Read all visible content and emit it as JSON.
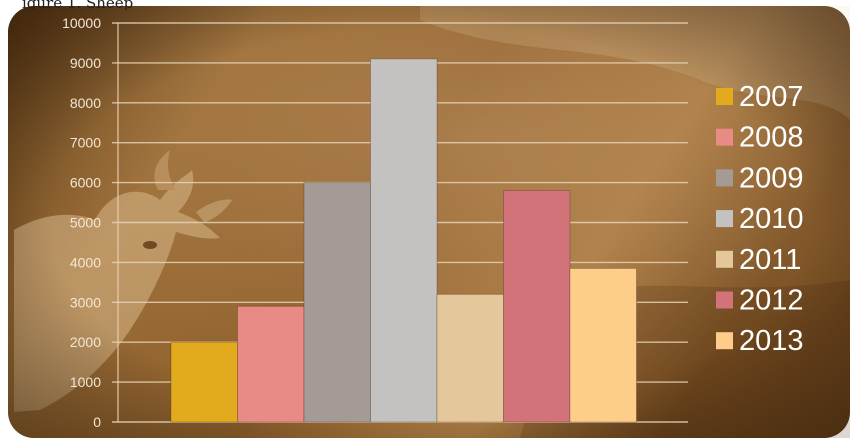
{
  "caption": "igure 1. Sheep",
  "colors": {
    "background_dark": "#5e3c16",
    "background_light": "#b88a52",
    "gridline": "#e6d2b4",
    "axis_text": "#f3e6d2",
    "legend_text": "#ffffff"
  },
  "chart_data": {
    "type": "bar",
    "title": "",
    "xlabel": "",
    "ylabel": "",
    "ylim": [
      0,
      10000
    ],
    "yticks": [
      0,
      1000,
      2000,
      3000,
      4000,
      5000,
      6000,
      7000,
      8000,
      9000,
      10000
    ],
    "grid": true,
    "legend_position": "right",
    "categories": [
      "2007",
      "2008",
      "2009",
      "2010",
      "2011",
      "2012",
      "2013"
    ],
    "values": [
      2000,
      2900,
      6000,
      9100,
      3200,
      5800,
      3850
    ],
    "series_colors": [
      "#e2ab1e",
      "#e88a86",
      "#a49b96",
      "#c4c2c1",
      "#e5c79c",
      "#d2737a",
      "#fcce8a"
    ]
  }
}
